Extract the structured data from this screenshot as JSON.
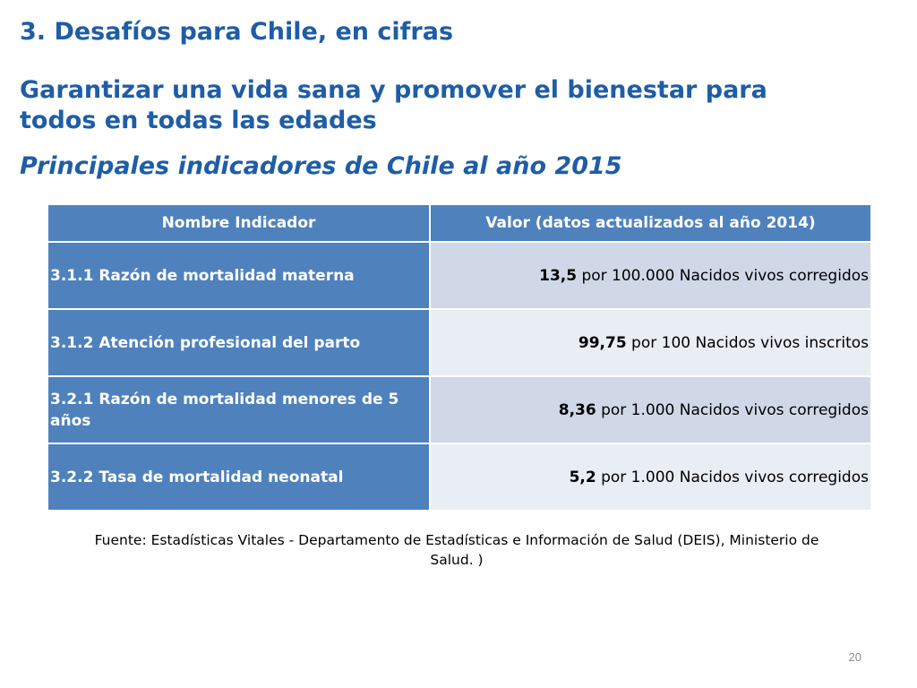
{
  "slide": {
    "title": "3. Desafíos para Chile, en cifras",
    "subtitle": "Garantizar una vida sana y promover el bienestar para todos en todas las edades",
    "caption": "Principales indicadores de Chile al año 2015",
    "page_number": "20"
  },
  "table": {
    "headers": {
      "name": "Nombre Indicador",
      "value": "Valor (datos actualizados al año 2014)"
    },
    "rows": [
      {
        "name": "3.1.1 Razón de mortalidad materna",
        "value": "13,5",
        "unit": " por 100.000 Nacidos vivos corregidos"
      },
      {
        "name": "3.1.2 Atención profesional del parto",
        "value": "99,75",
        "unit": " por 100 Nacidos vivos inscritos"
      },
      {
        "name": "3.2.1 Razón de mortalidad menores de 5 años",
        "value": "8,36",
        "unit": " por 1.000 Nacidos vivos corregidos"
      },
      {
        "name": "3.2.2 Tasa de mortalidad neonatal",
        "value": "5,2",
        "unit": " por 1.000 Nacidos vivos corregidos"
      }
    ]
  },
  "source": "Fuente: Estadísticas Vitales - Departamento de Estadísticas e Información de Salud (DEIS), Ministerio de Salud. )",
  "colors": {
    "heading": "#1f5da6",
    "table_header": "#4f81bd",
    "row_dark": "#d0d8e8",
    "row_light": "#e9edf4"
  }
}
